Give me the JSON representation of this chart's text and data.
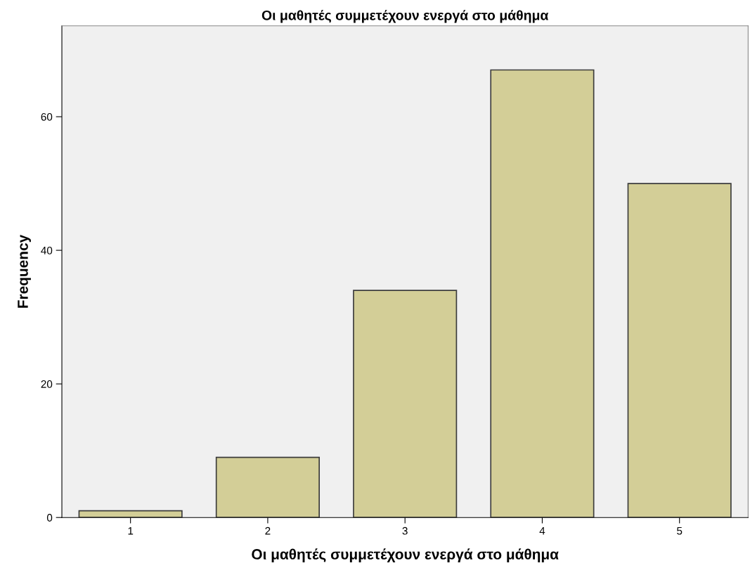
{
  "chart_data": {
    "type": "bar",
    "title": "Οι μαθητές συμμετέχουν ενεργά στο μάθημα",
    "xlabel": "Οι μαθητές συμμετέχουν ενεργά στο μάθημα",
    "ylabel": "Frequency",
    "categories": [
      "1",
      "2",
      "3",
      "4",
      "5"
    ],
    "values": [
      1,
      9,
      34,
      67,
      50
    ],
    "color": "#d3ce97",
    "ylim": [
      0,
      73.6
    ],
    "yticks": [
      0,
      20,
      40,
      60
    ],
    "grid": false
  }
}
